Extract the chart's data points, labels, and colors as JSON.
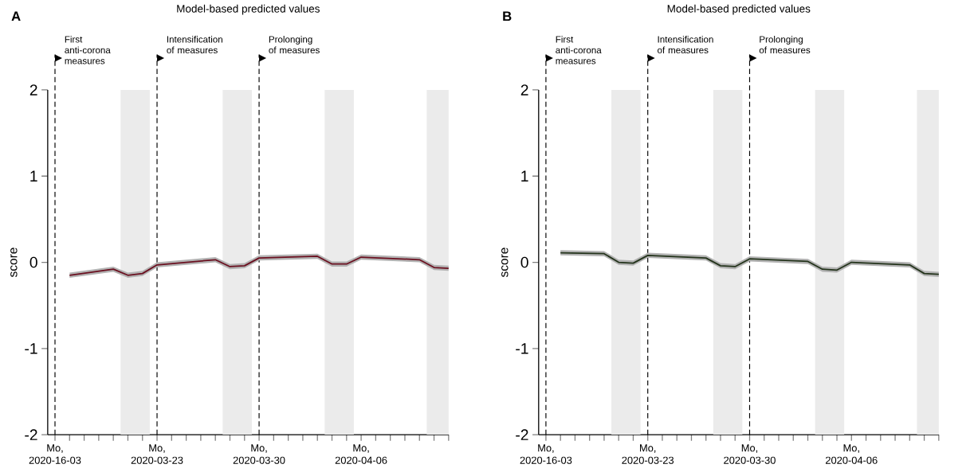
{
  "chart_data": [
    {
      "type": "line",
      "title": "Model-based predicted values",
      "annotations": [
        "A"
      ],
      "ylabel": "score",
      "x": [
        "2020-03-17",
        "2020-03-20",
        "2020-03-21",
        "2020-03-22",
        "2020-03-23",
        "2020-03-27",
        "2020-03-28",
        "2020-03-29",
        "2020-03-30",
        "2020-04-03",
        "2020-04-04",
        "2020-04-05",
        "2020-04-06",
        "2020-04-10",
        "2020-04-11",
        "2020-04-12"
      ],
      "series": [
        {
          "color": "#6b1020",
          "values": [
            -0.15,
            -0.08,
            -0.15,
            -0.13,
            -0.03,
            0.03,
            -0.05,
            -0.04,
            0.05,
            0.07,
            -0.02,
            -0.02,
            0.06,
            0.03,
            -0.06,
            -0.07
          ],
          "lower": [
            -0.18,
            -0.11,
            -0.18,
            -0.16,
            -0.06,
            0.0,
            -0.08,
            -0.07,
            0.02,
            0.04,
            -0.05,
            -0.05,
            0.03,
            0.0,
            -0.09,
            -0.1
          ],
          "upper": [
            -0.12,
            -0.05,
            -0.12,
            -0.1,
            0.0,
            0.06,
            -0.02,
            -0.01,
            0.08,
            0.1,
            0.01,
            0.01,
            0.09,
            0.06,
            -0.03,
            -0.04
          ]
        }
      ],
      "xlim": [
        "2020-03-15T12:00",
        "2020-04-12"
      ],
      "ylim": [
        -2,
        2
      ],
      "yticks": [
        -2,
        -1,
        0,
        1,
        2
      ],
      "xticks": [
        {
          "value": "2020-03-16",
          "label": "Mo, 2020-16-03"
        },
        {
          "value": "2020-03-17",
          "label": null
        },
        {
          "value": "2020-03-18",
          "label": null
        },
        {
          "value": "2020-03-19",
          "label": null
        },
        {
          "value": "2020-03-20",
          "label": null
        },
        {
          "value": "2020-03-21",
          "label": null
        },
        {
          "value": "2020-03-22",
          "label": null
        },
        {
          "value": "2020-03-23",
          "label": "Mo, 2020-03-23"
        },
        {
          "value": "2020-03-24",
          "label": null
        },
        {
          "value": "2020-03-25",
          "label": null
        },
        {
          "value": "2020-03-26",
          "label": null
        },
        {
          "value": "2020-03-27",
          "label": null
        },
        {
          "value": "2020-03-28",
          "label": null
        },
        {
          "value": "2020-03-29",
          "label": null
        },
        {
          "value": "2020-03-30",
          "label": "Mo, 2020-03-30"
        },
        {
          "value": "2020-03-31",
          "label": null
        },
        {
          "value": "2020-04-01",
          "label": null
        },
        {
          "value": "2020-04-02",
          "label": null
        },
        {
          "value": "2020-04-03",
          "label": null
        },
        {
          "value": "2020-04-04",
          "label": null
        },
        {
          "value": "2020-04-05",
          "label": null
        },
        {
          "value": "2020-04-06",
          "label": "Mo, 2020-04-06"
        },
        {
          "value": "2020-04-07",
          "label": null
        },
        {
          "value": "2020-04-08",
          "label": null
        },
        {
          "value": "2020-04-09",
          "label": null
        },
        {
          "value": "2020-04-10",
          "label": null
        },
        {
          "value": "2020-04-11",
          "label": null
        },
        {
          "value": "2020-04-12",
          "label": null
        }
      ],
      "ref_lines": [
        {
          "axis": "x",
          "value": "2020-03-16",
          "label": "First anti-corona measures",
          "color": "#000000",
          "line_style": "dashed"
        },
        {
          "axis": "x",
          "value": "2020-03-23",
          "label": "Intensification of measures",
          "color": "#000000",
          "line_style": "dashed"
        },
        {
          "axis": "x",
          "value": "2020-03-30",
          "label": "Prolonging of measures",
          "color": "#000000",
          "line_style": "dashed"
        }
      ],
      "bands": [
        {
          "axis": "x",
          "from": "2020-03-20T12:00",
          "to": "2020-03-22T12:00",
          "color": "#ebebeb"
        },
        {
          "axis": "x",
          "from": "2020-03-27T12:00",
          "to": "2020-03-29T12:00",
          "color": "#ebebeb"
        },
        {
          "axis": "x",
          "from": "2020-04-03T12:00",
          "to": "2020-04-05T12:00",
          "color": "#ebebeb"
        },
        {
          "axis": "x",
          "from": "2020-04-10T12:00",
          "to": "2020-04-12",
          "color": "#ebebeb"
        }
      ]
    },
    {
      "type": "line",
      "title": "Model-based predicted values",
      "annotations": [
        "B"
      ],
      "ylabel": "score",
      "x": [
        "2020-03-17",
        "2020-03-20",
        "2020-03-21",
        "2020-03-22",
        "2020-03-23",
        "2020-03-27",
        "2020-03-28",
        "2020-03-29",
        "2020-03-30",
        "2020-04-03",
        "2020-04-04",
        "2020-04-05",
        "2020-04-06",
        "2020-04-10",
        "2020-04-11",
        "2020-04-12"
      ],
      "series": [
        {
          "color": "#24341c",
          "values": [
            0.11,
            0.1,
            0.0,
            -0.01,
            0.08,
            0.05,
            -0.04,
            -0.05,
            0.04,
            0.01,
            -0.08,
            -0.09,
            0.0,
            -0.03,
            -0.13,
            -0.14
          ],
          "lower": [
            0.08,
            0.07,
            -0.03,
            -0.04,
            0.05,
            0.02,
            -0.07,
            -0.08,
            0.01,
            -0.02,
            -0.11,
            -0.12,
            -0.03,
            -0.06,
            -0.16,
            -0.17
          ],
          "upper": [
            0.14,
            0.13,
            0.03,
            0.02,
            0.11,
            0.08,
            -0.01,
            -0.02,
            0.07,
            0.04,
            -0.05,
            -0.06,
            0.03,
            0.0,
            -0.1,
            -0.11
          ]
        }
      ],
      "xlim": [
        "2020-03-15T12:00",
        "2020-04-12"
      ],
      "ylim": [
        -2,
        2
      ],
      "yticks": [
        -2,
        -1,
        0,
        1,
        2
      ],
      "xticks": [
        {
          "value": "2020-03-16",
          "label": "Mo, 2020-16-03"
        },
        {
          "value": "2020-03-17",
          "label": null
        },
        {
          "value": "2020-03-18",
          "label": null
        },
        {
          "value": "2020-03-19",
          "label": null
        },
        {
          "value": "2020-03-20",
          "label": null
        },
        {
          "value": "2020-03-21",
          "label": null
        },
        {
          "value": "2020-03-22",
          "label": null
        },
        {
          "value": "2020-03-23",
          "label": "Mo, 2020-03-23"
        },
        {
          "value": "2020-03-24",
          "label": null
        },
        {
          "value": "2020-03-25",
          "label": null
        },
        {
          "value": "2020-03-26",
          "label": null
        },
        {
          "value": "2020-03-27",
          "label": null
        },
        {
          "value": "2020-03-28",
          "label": null
        },
        {
          "value": "2020-03-29",
          "label": null
        },
        {
          "value": "2020-03-30",
          "label": "Mo, 2020-03-30"
        },
        {
          "value": "2020-03-31",
          "label": null
        },
        {
          "value": "2020-04-01",
          "label": null
        },
        {
          "value": "2020-04-02",
          "label": null
        },
        {
          "value": "2020-04-03",
          "label": null
        },
        {
          "value": "2020-04-04",
          "label": null
        },
        {
          "value": "2020-04-05",
          "label": null
        },
        {
          "value": "2020-04-06",
          "label": "Mo, 2020-04-06"
        },
        {
          "value": "2020-04-07",
          "label": null
        },
        {
          "value": "2020-04-08",
          "label": null
        },
        {
          "value": "2020-04-09",
          "label": null
        },
        {
          "value": "2020-04-10",
          "label": null
        },
        {
          "value": "2020-04-11",
          "label": null
        },
        {
          "value": "2020-04-12",
          "label": null
        }
      ],
      "ref_lines": [
        {
          "axis": "x",
          "value": "2020-03-16",
          "label": "First anti-corona measures",
          "color": "#000000",
          "line_style": "dashed"
        },
        {
          "axis": "x",
          "value": "2020-03-23",
          "label": "Intensification of measures",
          "color": "#000000",
          "line_style": "dashed"
        },
        {
          "axis": "x",
          "value": "2020-03-30",
          "label": "Prolonging of measures",
          "color": "#000000",
          "line_style": "dashed"
        }
      ],
      "bands": [
        {
          "axis": "x",
          "from": "2020-03-20T12:00",
          "to": "2020-03-22T12:00",
          "color": "#ebebeb"
        },
        {
          "axis": "x",
          "from": "2020-03-27T12:00",
          "to": "2020-03-29T12:00",
          "color": "#ebebeb"
        },
        {
          "axis": "x",
          "from": "2020-04-03T12:00",
          "to": "2020-04-05T12:00",
          "color": "#ebebeb"
        },
        {
          "axis": "x",
          "from": "2020-04-10T12:00",
          "to": "2020-04-12",
          "color": "#ebebeb"
        }
      ]
    }
  ]
}
